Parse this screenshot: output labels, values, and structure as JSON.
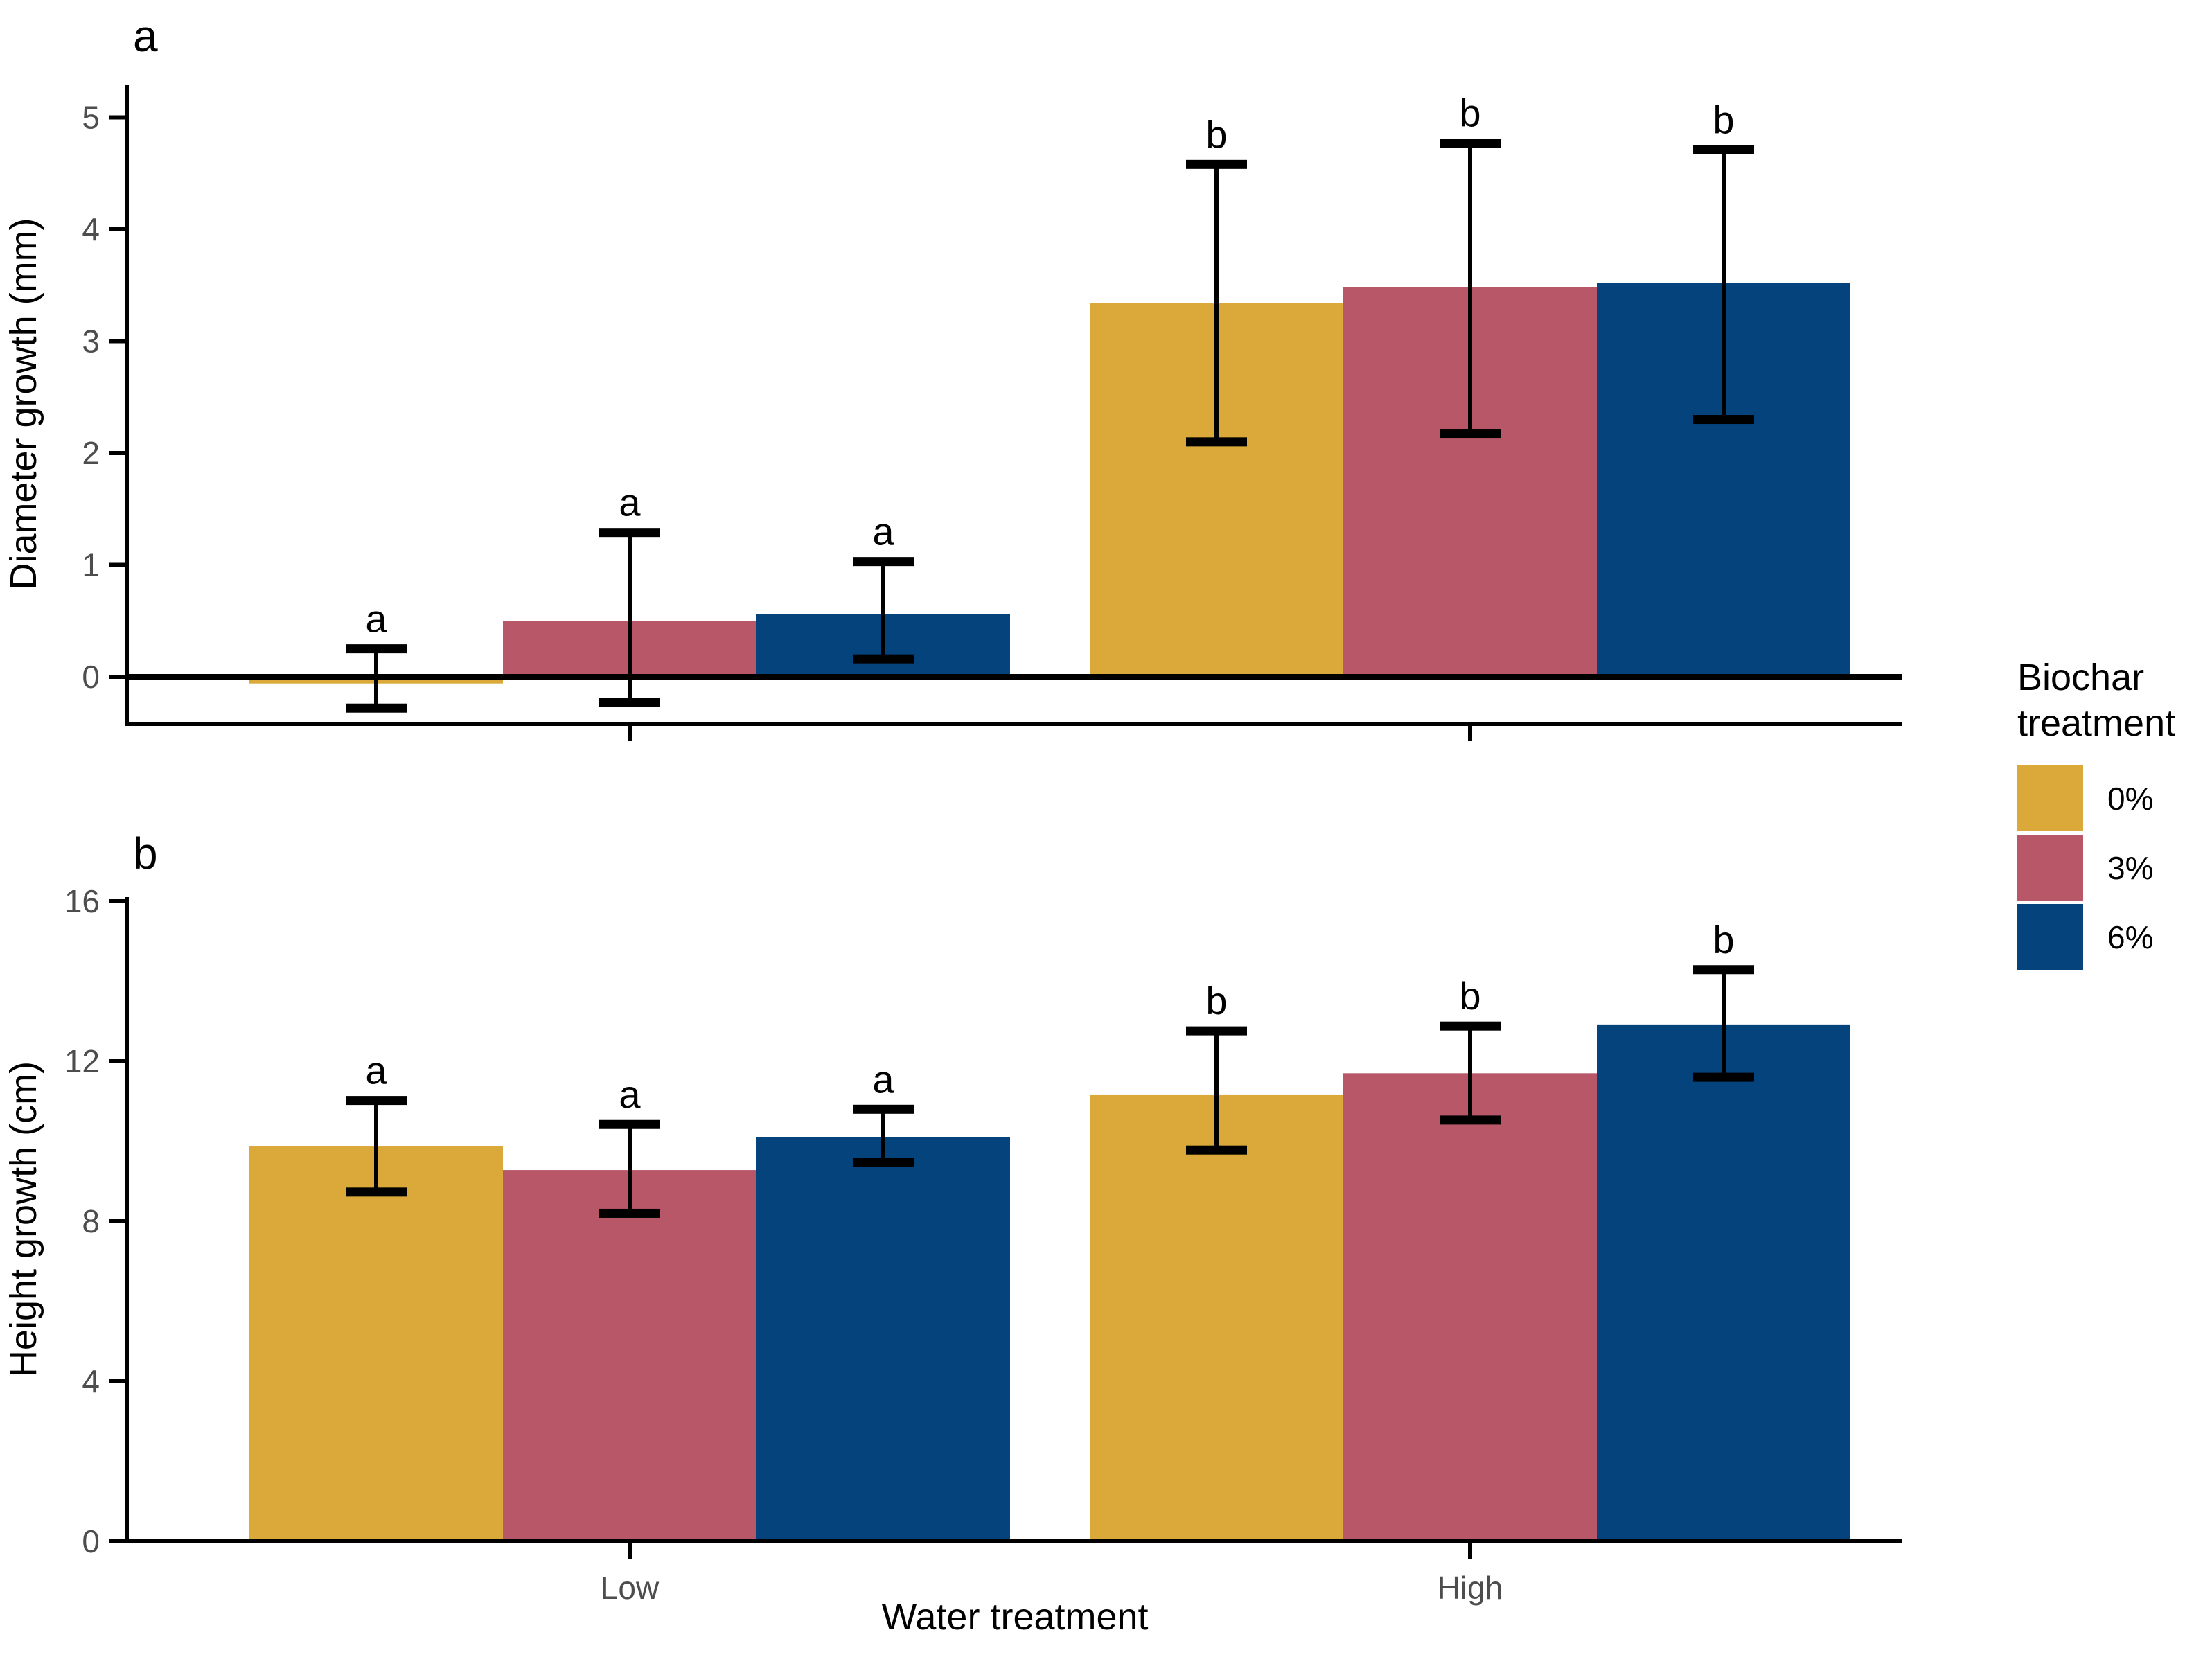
{
  "figure": {
    "panel_a_letter": "a",
    "panel_b_letter": "b",
    "x_axis_title": "Water treatment",
    "legend": {
      "title_line1": "Biochar",
      "title_line2": "treatment",
      "items": [
        {
          "label": "0%",
          "color": "#DBA939"
        },
        {
          "label": "3%",
          "color": "#B85767"
        },
        {
          "label": "6%",
          "color": "#04437C"
        }
      ]
    },
    "colors": {
      "axis_line": "#000000",
      "tick_label": "#4D4D4D",
      "significance_letter": "#000000"
    }
  },
  "chart_data": [
    {
      "panel": "a",
      "type": "bar",
      "title": "",
      "ylabel": "Diameter growth (mm)",
      "xlabel": "Water treatment",
      "categories": [
        "Low",
        "High"
      ],
      "yticks": [
        0,
        1,
        2,
        3,
        4,
        5
      ],
      "ylim": [
        -0.42,
        5.3
      ],
      "grid": false,
      "legend_position": "right",
      "hline": 0,
      "series": [
        {
          "name": "0%",
          "color": "#DBA939",
          "values": [
            -0.06,
            3.34
          ],
          "err_low": [
            -0.28,
            2.1
          ],
          "err_high": [
            0.25,
            4.58
          ],
          "letters": [
            "a",
            "b"
          ]
        },
        {
          "name": "3%",
          "color": "#B85767",
          "values": [
            0.5,
            3.48
          ],
          "err_low": [
            -0.23,
            2.17
          ],
          "err_high": [
            1.29,
            4.77
          ],
          "letters": [
            "a",
            "b"
          ]
        },
        {
          "name": "6%",
          "color": "#04437C",
          "values": [
            0.56,
            3.52
          ],
          "err_low": [
            0.16,
            2.3
          ],
          "err_high": [
            1.03,
            4.71
          ],
          "letters": [
            "a",
            "b"
          ]
        }
      ]
    },
    {
      "panel": "b",
      "type": "bar",
      "title": "",
      "ylabel": "Height growth (cm)",
      "xlabel": "Water treatment",
      "categories": [
        "Low",
        "High"
      ],
      "yticks": [
        0,
        4,
        8,
        12,
        16
      ],
      "ylim": [
        0,
        16.1
      ],
      "grid": false,
      "legend_position": "right",
      "series": [
        {
          "name": "0%",
          "color": "#DBA939",
          "values": [
            9.87,
            11.17
          ],
          "err_low": [
            8.73,
            9.78
          ],
          "err_high": [
            11.02,
            12.76
          ],
          "letters": [
            "a",
            "b"
          ]
        },
        {
          "name": "3%",
          "color": "#B85767",
          "values": [
            9.28,
            11.7
          ],
          "err_low": [
            8.2,
            10.53
          ],
          "err_high": [
            10.42,
            12.88
          ],
          "letters": [
            "a",
            "b"
          ]
        },
        {
          "name": "6%",
          "color": "#04437C",
          "values": [
            10.1,
            12.92
          ],
          "err_low": [
            9.47,
            11.6
          ],
          "err_high": [
            10.8,
            14.29
          ],
          "letters": [
            "a",
            "b"
          ]
        }
      ]
    }
  ]
}
